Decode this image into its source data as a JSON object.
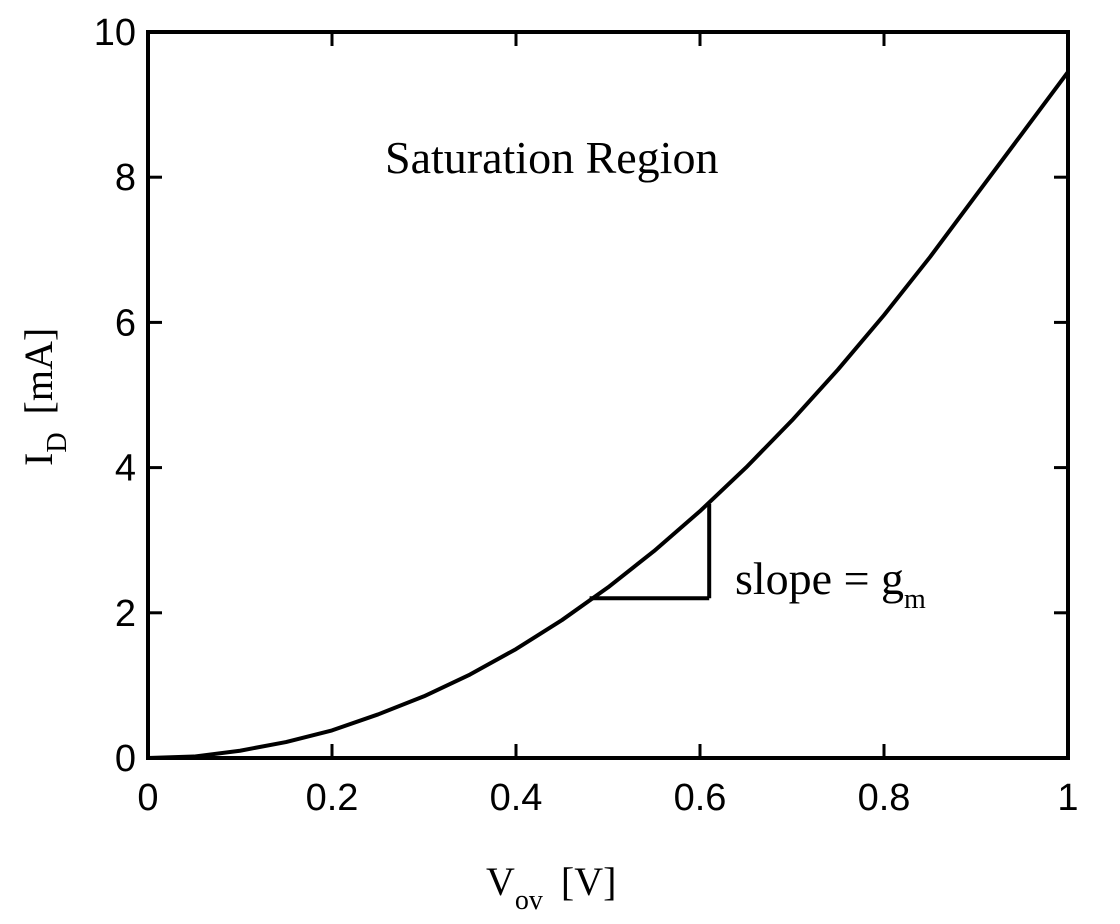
{
  "chart_data": {
    "type": "line",
    "xlabel": {
      "main": "V",
      "sub": "ov",
      "unit": "[V]"
    },
    "ylabel": {
      "main": "I",
      "sub": "D",
      "unit": "[mA]"
    },
    "xlim": [
      0,
      1
    ],
    "ylim": [
      0,
      10
    ],
    "x_ticks": [
      0,
      0.2,
      0.4,
      0.6,
      0.8,
      1
    ],
    "x_tick_labels": [
      "0",
      "0.2",
      "0.4",
      "0.6",
      "0.8",
      "1"
    ],
    "y_ticks": [
      0,
      2,
      4,
      6,
      8,
      10
    ],
    "y_tick_labels": [
      "0",
      "2",
      "4",
      "6",
      "8",
      "10"
    ],
    "grid": false,
    "series": [
      {
        "x": [
          0,
          0.05,
          0.1,
          0.15,
          0.2,
          0.25,
          0.3,
          0.35,
          0.4,
          0.45,
          0.5,
          0.55,
          0.6,
          0.65,
          0.7,
          0.75,
          0.8,
          0.85,
          0.9,
          0.95,
          1.0
        ],
        "y": [
          0,
          0.02,
          0.1,
          0.22,
          0.38,
          0.6,
          0.85,
          1.15,
          1.5,
          1.9,
          2.35,
          2.85,
          3.4,
          4.0,
          4.65,
          5.35,
          6.1,
          6.9,
          7.75,
          8.6,
          9.45
        ]
      }
    ],
    "slope_triangle": {
      "x_start": 0.48,
      "x_end": 0.61,
      "y_start": 2.2,
      "y_end": 3.5
    },
    "annotations": {
      "region": "Saturation Region",
      "slope_text": "slope = g",
      "slope_sub": "m"
    }
  }
}
